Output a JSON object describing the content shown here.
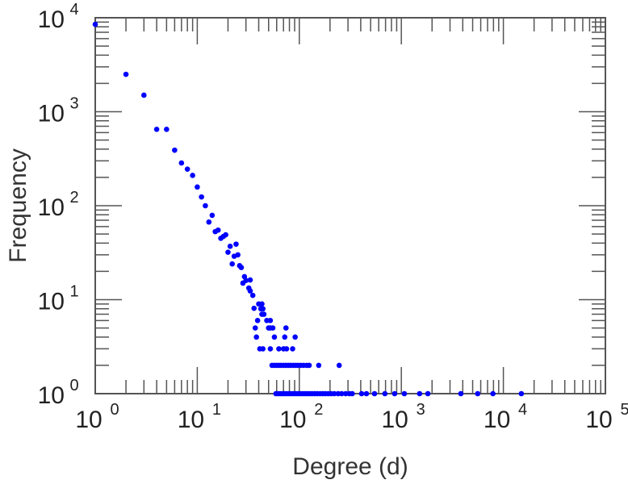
{
  "chart_data": {
    "type": "scatter",
    "title": "",
    "xlabel": "Degree (d)",
    "ylabel": "Frequency",
    "xscale": "log",
    "yscale": "log",
    "xlim": [
      1,
      100000
    ],
    "ylim": [
      1,
      10000
    ],
    "grid": false,
    "legend": "none",
    "marker_color": "#0000ff",
    "x_ticks": [
      {
        "base": "10",
        "exp": "0"
      },
      {
        "base": "10",
        "exp": "1"
      },
      {
        "base": "10",
        "exp": "2"
      },
      {
        "base": "10",
        "exp": "3"
      },
      {
        "base": "10",
        "exp": "4"
      },
      {
        "base": "10",
        "exp": "5"
      }
    ],
    "y_ticks": [
      {
        "base": "10",
        "exp": "0"
      },
      {
        "base": "10",
        "exp": "1"
      },
      {
        "base": "10",
        "exp": "2"
      },
      {
        "base": "10",
        "exp": "3"
      },
      {
        "base": "10",
        "exp": "4"
      }
    ],
    "points": [
      [
        1,
        8500
      ],
      [
        2,
        2500
      ],
      [
        3,
        1500
      ],
      [
        4,
        650
      ],
      [
        5,
        650
      ],
      [
        6,
        390
      ],
      [
        7,
        285
      ],
      [
        8,
        245
      ],
      [
        9,
        210
      ],
      [
        10,
        158
      ],
      [
        11,
        124
      ],
      [
        12,
        100
      ],
      [
        13,
        67
      ],
      [
        14,
        79
      ],
      [
        15,
        53
      ],
      [
        16,
        55
      ],
      [
        17,
        45
      ],
      [
        18,
        47
      ],
      [
        19,
        49
      ],
      [
        20,
        32
      ],
      [
        21,
        37
      ],
      [
        22,
        24
      ],
      [
        23,
        29
      ],
      [
        24,
        39
      ],
      [
        25,
        30
      ],
      [
        26,
        23
      ],
      [
        27,
        22
      ],
      [
        28,
        15
      ],
      [
        29,
        17.6
      ],
      [
        30,
        16
      ],
      [
        32,
        13.3
      ],
      [
        33,
        16.2
      ],
      [
        33,
        12.4
      ],
      [
        35,
        11.1
      ],
      [
        36,
        8.1
      ],
      [
        37,
        5
      ],
      [
        38,
        4
      ],
      [
        39,
        6
      ],
      [
        40,
        9
      ],
      [
        41,
        3
      ],
      [
        42,
        8
      ],
      [
        43,
        9
      ],
      [
        43,
        7
      ],
      [
        44,
        8
      ],
      [
        44,
        3
      ],
      [
        45,
        7
      ],
      [
        48,
        6
      ],
      [
        50,
        5
      ],
      [
        52,
        6
      ],
      [
        52,
        5
      ],
      [
        52,
        3
      ],
      [
        55,
        5
      ],
      [
        57,
        4
      ],
      [
        63,
        3
      ],
      [
        70,
        3
      ],
      [
        72,
        4
      ],
      [
        74,
        5
      ],
      [
        75,
        3
      ],
      [
        86,
        3
      ],
      [
        91,
        4
      ],
      [
        54,
        2
      ],
      [
        57,
        2
      ],
      [
        60,
        2
      ],
      [
        63,
        2
      ],
      [
        66,
        2
      ],
      [
        70,
        2
      ],
      [
        74,
        2
      ],
      [
        78,
        2
      ],
      [
        82,
        2
      ],
      [
        87,
        2
      ],
      [
        92,
        2
      ],
      [
        97,
        2
      ],
      [
        103,
        2
      ],
      [
        110,
        2
      ],
      [
        118,
        2
      ],
      [
        125,
        2
      ],
      [
        155,
        2
      ],
      [
        246,
        2
      ],
      [
        59,
        1
      ],
      [
        62,
        1
      ],
      [
        65,
        1
      ],
      [
        68,
        1
      ],
      [
        71,
        1
      ],
      [
        75,
        1
      ],
      [
        79,
        1
      ],
      [
        83,
        1
      ],
      [
        87,
        1
      ],
      [
        92,
        1
      ],
      [
        97,
        1
      ],
      [
        102,
        1
      ],
      [
        108,
        1
      ],
      [
        114,
        1
      ],
      [
        120,
        1
      ],
      [
        127,
        1
      ],
      [
        134,
        1
      ],
      [
        142,
        1
      ],
      [
        150,
        1
      ],
      [
        160,
        1
      ],
      [
        170,
        1
      ],
      [
        180,
        1
      ],
      [
        192,
        1
      ],
      [
        205,
        1
      ],
      [
        220,
        1
      ],
      [
        240,
        1
      ],
      [
        260,
        1
      ],
      [
        285,
        1
      ],
      [
        310,
        1
      ],
      [
        330,
        1
      ],
      [
        408,
        1
      ],
      [
        455,
        1
      ],
      [
        546,
        1
      ],
      [
        690,
        1
      ],
      [
        860,
        1
      ],
      [
        1070,
        1
      ],
      [
        1510,
        1
      ],
      [
        1820,
        1
      ],
      [
        3830,
        1
      ],
      [
        5600,
        1
      ],
      [
        7900,
        1
      ],
      [
        15000,
        1
      ]
    ]
  }
}
